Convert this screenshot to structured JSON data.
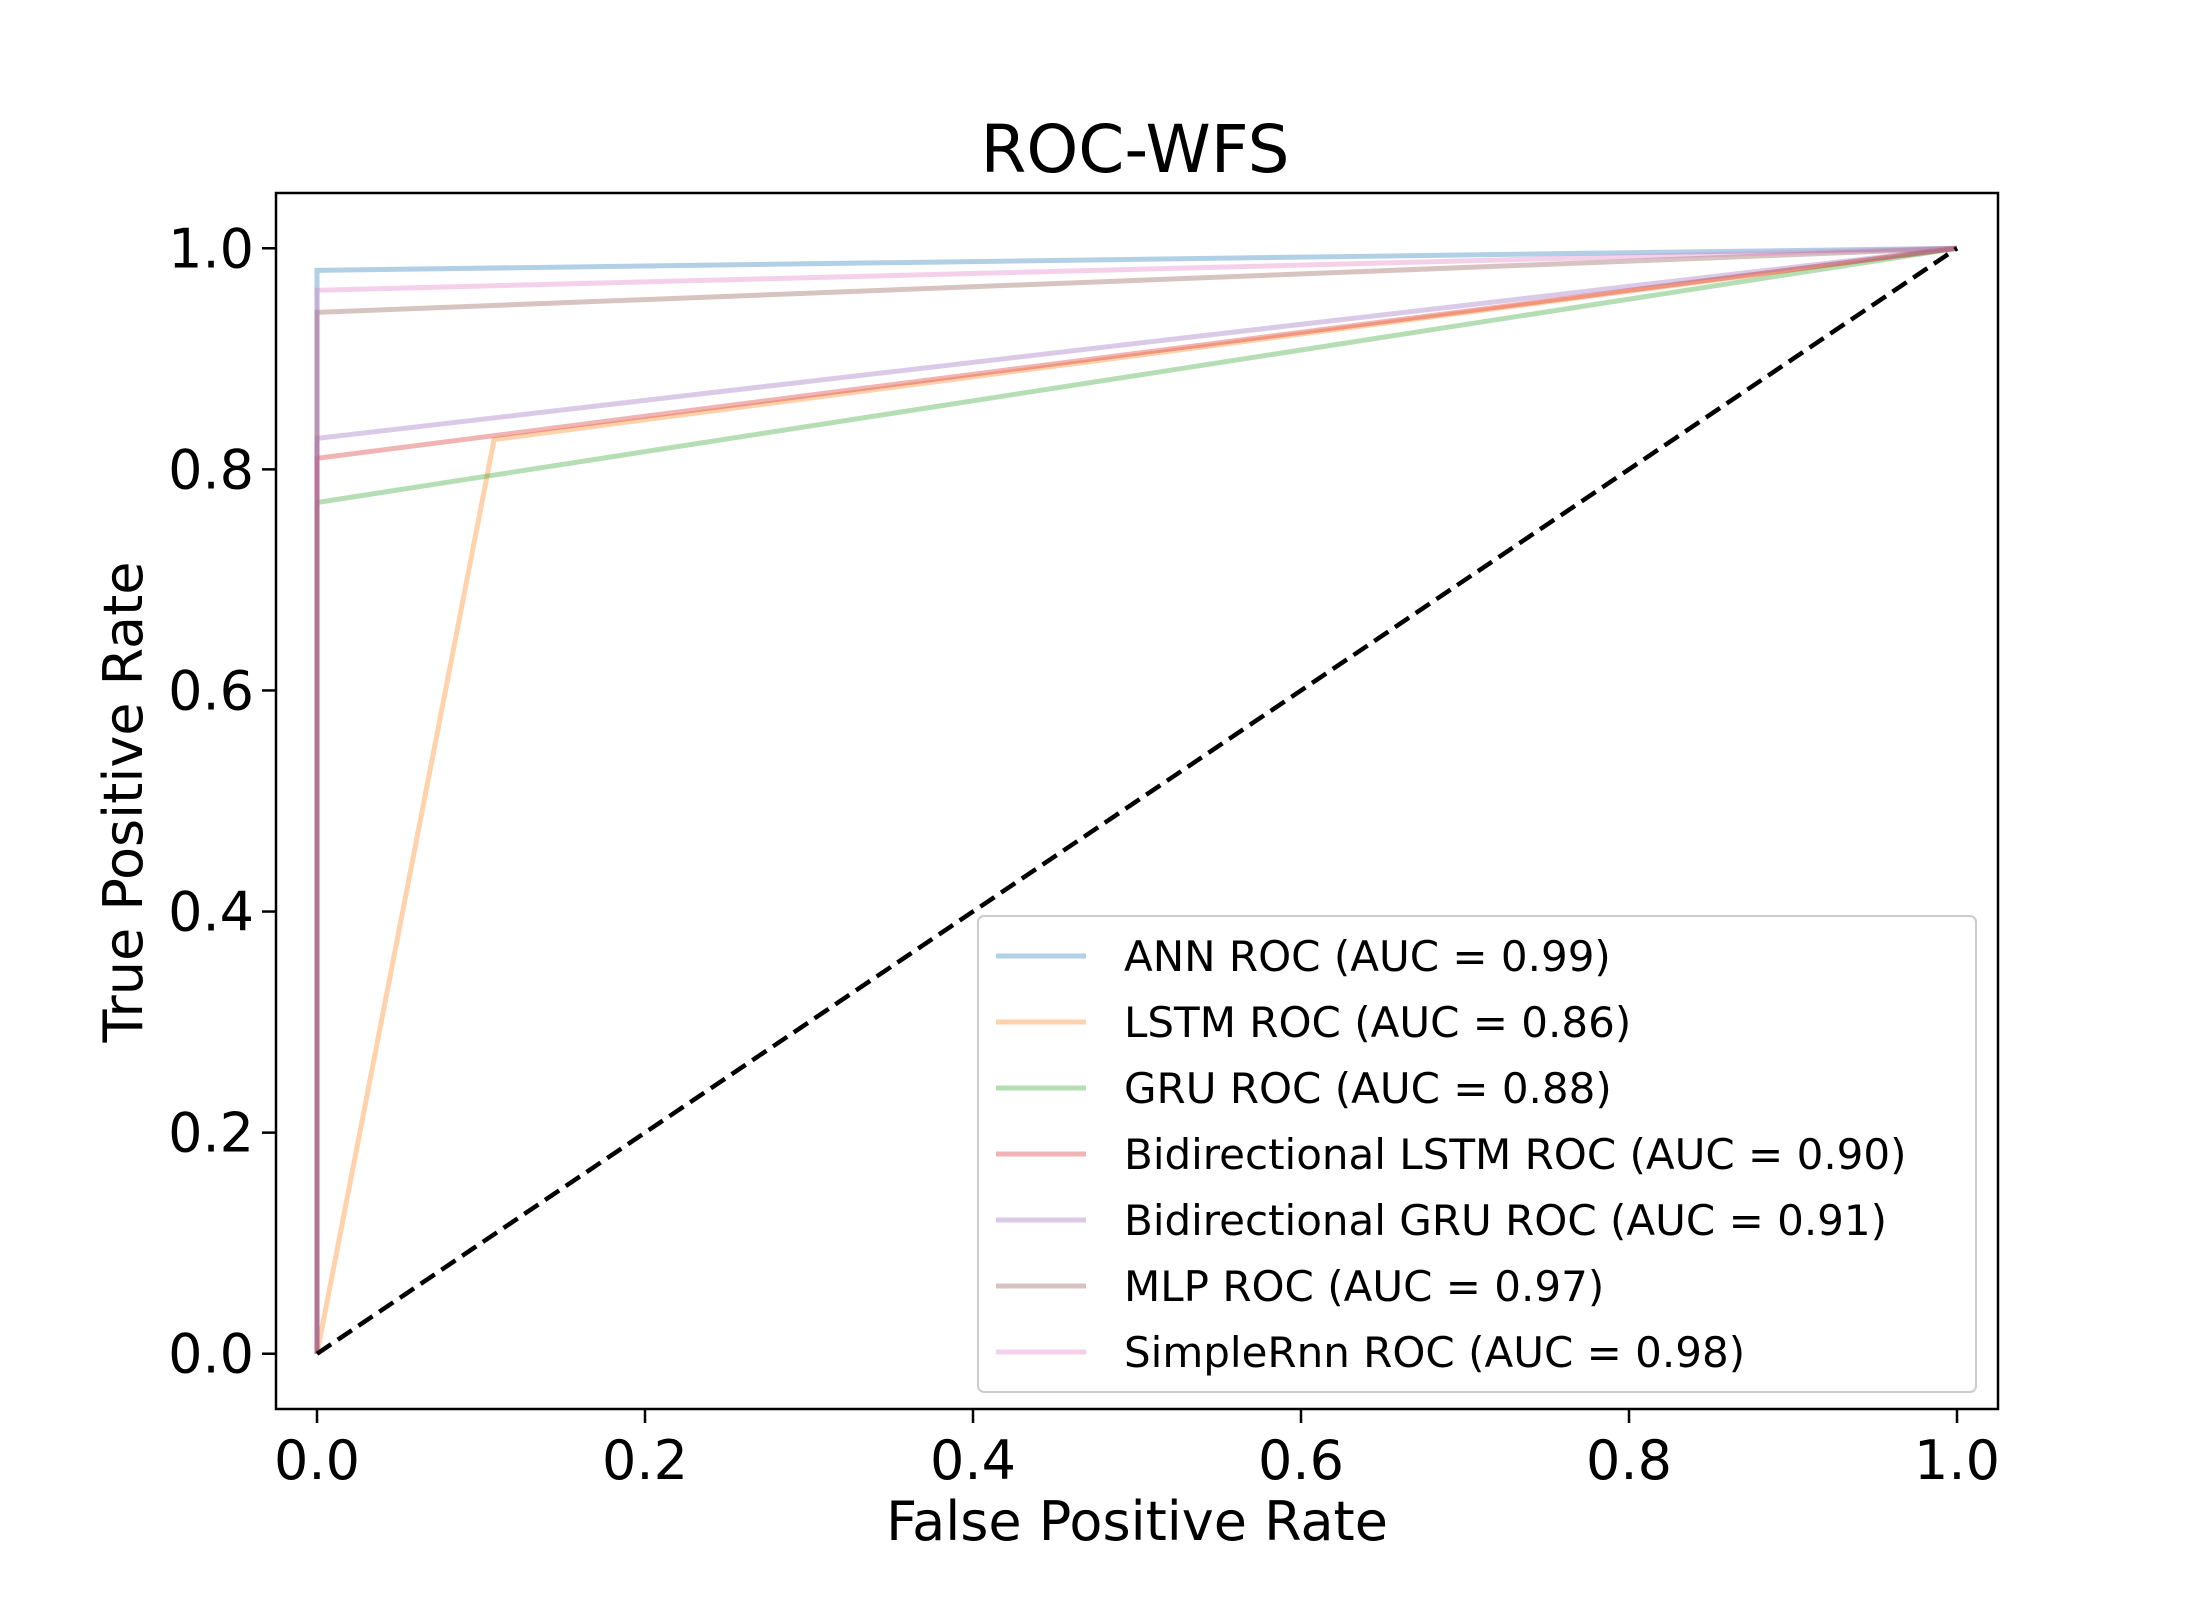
{
  "chart_data": {
    "type": "line",
    "title": "ROC-WFS",
    "xlabel": "False Positive Rate",
    "ylabel": "True Positive Rate",
    "xlim": [
      -0.025,
      1.025
    ],
    "ylim": [
      -0.05,
      1.05
    ],
    "xticks": [
      "0.0",
      "0.2",
      "0.4",
      "0.6",
      "0.8",
      "1.0"
    ],
    "yticks": [
      "0.0",
      "0.2",
      "0.4",
      "0.6",
      "0.8",
      "1.0"
    ],
    "grid": false,
    "legend_position": "lower-right",
    "series": [
      {
        "name": "ANN ROC (AUC = 0.99)",
        "color": "#1f77b4",
        "x": [
          0,
          0,
          1
        ],
        "y": [
          0,
          0.98,
          1
        ]
      },
      {
        "name": "LSTM ROC (AUC = 0.86)",
        "color": "#ff7f0e",
        "x": [
          0,
          0.108,
          1
        ],
        "y": [
          0,
          0.827,
          1
        ]
      },
      {
        "name": "GRU ROC (AUC = 0.88)",
        "color": "#2ca02c",
        "x": [
          0,
          0,
          1
        ],
        "y": [
          0,
          0.77,
          1
        ]
      },
      {
        "name": "Bidirectional LSTM ROC (AUC = 0.90)",
        "color": "#d62728",
        "x": [
          0,
          0,
          1
        ],
        "y": [
          0,
          0.81,
          1
        ]
      },
      {
        "name": "Bidirectional GRU ROC (AUC = 0.91)",
        "color": "#9467bd",
        "x": [
          0,
          0,
          1
        ],
        "y": [
          0,
          0.828,
          1
        ]
      },
      {
        "name": "MLP ROC (AUC = 0.97)",
        "color": "#8c564b",
        "x": [
          0,
          0,
          1
        ],
        "y": [
          0,
          0.942,
          1
        ]
      },
      {
        "name": "SimpleRnn ROC (AUC = 0.98)",
        "color": "#e377c2",
        "x": [
          0,
          0,
          1
        ],
        "y": [
          0,
          0.962,
          1
        ]
      }
    ],
    "diagonal": {
      "x": [
        0,
        1
      ],
      "y": [
        0,
        1
      ],
      "color": "#000000",
      "style": "dashed"
    }
  }
}
